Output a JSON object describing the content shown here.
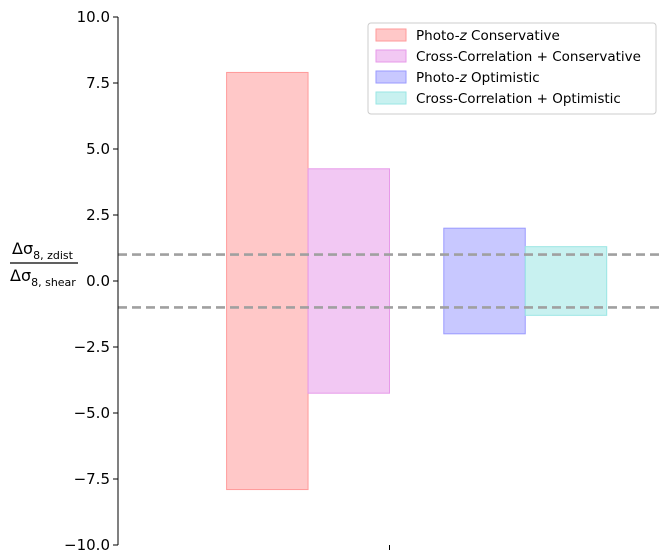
{
  "chart_data": {
    "type": "bar",
    "ylabel_numerator": "Δσ",
    "ylabel_numerator_sub": "8, zdist",
    "ylabel_denominator": "Δσ",
    "ylabel_denominator_sub": "8, shear",
    "ylim": [
      -10.0,
      10.0
    ],
    "yticks": [
      10.0,
      7.5,
      5.0,
      2.5,
      0.0,
      -2.5,
      -5.0,
      -7.5,
      -10.0
    ],
    "ytick_labels": [
      "10.0",
      "7.5",
      "5.0",
      "2.5",
      "0.0",
      "−2.5",
      "−5.0",
      "−7.5",
      "−10.0"
    ],
    "xlim": [
      0,
      2
    ],
    "xticks": [
      1.0
    ],
    "series": [
      {
        "name": "Photo-z Conservative",
        "name_parts": [
          "Photo-",
          "z",
          " Conservative"
        ],
        "x_start": 0.4,
        "x_end": 0.7,
        "low": -7.9,
        "high": 7.9,
        "color": "#ff9a9a"
      },
      {
        "name": "Cross-Correlation + Conservative",
        "name_parts": [
          "Cross-Correlation + Conservative"
        ],
        "x_start": 0.7,
        "x_end": 1.0,
        "low": -4.25,
        "high": 4.25,
        "color": "#e79ae9"
      },
      {
        "name": "Photo-z Optimistic",
        "name_parts": [
          "Photo-",
          "z",
          " Optimistic"
        ],
        "x_start": 1.2,
        "x_end": 1.5,
        "low": -2.0,
        "high": 2.0,
        "color": "#9a9aff"
      },
      {
        "name": "Cross-Correlation + Optimistic",
        "name_parts": [
          "Cross-Correlation + Optimistic"
        ],
        "x_start": 1.5,
        "x_end": 1.8,
        "low": -1.3,
        "high": 1.3,
        "color": "#9ae6e4"
      }
    ],
    "hlines": [
      {
        "y": 1.0,
        "style": "dashed",
        "color": "#a0a0a0"
      },
      {
        "y": -1.0,
        "style": "dashed",
        "color": "#a0a0a0"
      }
    ],
    "legend_position": "top-right",
    "grid": false
  }
}
